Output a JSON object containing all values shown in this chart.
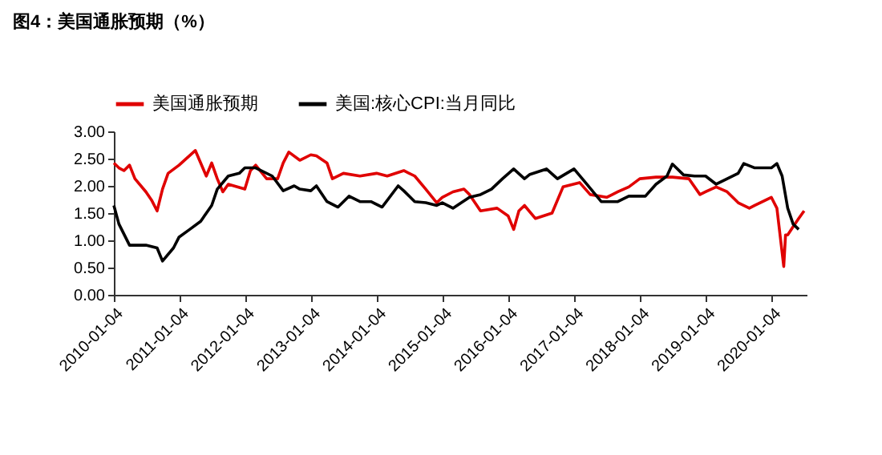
{
  "chart_data": {
    "type": "line",
    "title": "图4：美国通胀预期（%）",
    "legend": "top",
    "marker": "none",
    "line_style": "solid",
    "grid": false,
    "xlim": [
      "2010-01-04",
      "2020-07-15"
    ],
    "xticks": [
      "2010-01-04",
      "2011-01-04",
      "2012-01-04",
      "2013-01-04",
      "2014-01-04",
      "2015-01-04",
      "2016-01-04",
      "2017-01-04",
      "2018-01-04",
      "2019-01-04",
      "2020-01-04"
    ],
    "ylim": [
      0,
      3
    ],
    "yticks": [
      {
        "value": 0,
        "label": "0.00"
      },
      {
        "value": 0.5,
        "label": "0.50"
      },
      {
        "value": 1,
        "label": "1.00"
      },
      {
        "value": 1.5,
        "label": "1.50"
      },
      {
        "value": 2,
        "label": "2.00"
      },
      {
        "value": 2.5,
        "label": "2.50"
      },
      {
        "value": 3,
        "label": "3.00"
      }
    ],
    "series": [
      {
        "name": "美国通胀预期",
        "color": "#e00000",
        "x": [
          "2010-01-04",
          "2010-02",
          "2010-03",
          "2010-04",
          "2010-05",
          "2010-07",
          "2010-08",
          "2010-09",
          "2010-10",
          "2010-11",
          "2011-01",
          "2011-04",
          "2011-05",
          "2011-06",
          "2011-07",
          "2011-08",
          "2011-09",
          "2011-10",
          "2012-01",
          "2012-02",
          "2012-03",
          "2012-05",
          "2012-07",
          "2012-08",
          "2012-09",
          "2012-11",
          "2013-01",
          "2013-02",
          "2013-04",
          "2013-05",
          "2013-07",
          "2013-10",
          "2014-01",
          "2014-03",
          "2014-06",
          "2014-08",
          "2014-10",
          "2014-12",
          "2015-01",
          "2015-03",
          "2015-05",
          "2015-06",
          "2015-08",
          "2015-11",
          "2016-01",
          "2016-02",
          "2016-03",
          "2016-04",
          "2016-06",
          "2016-09",
          "2016-11",
          "2017-02",
          "2017-04",
          "2017-07",
          "2017-09",
          "2017-11",
          "2018-01",
          "2018-04",
          "2018-07",
          "2018-10",
          "2018-12",
          "2019-01",
          "2019-03",
          "2019-05",
          "2019-07",
          "2019-09",
          "2019-10",
          "2020-01",
          "2020-02",
          "2020-03-10",
          "2020-03-20",
          "2020-04",
          "2020-05",
          "2020-06",
          "2020-07"
        ],
        "values": [
          2.42,
          2.33,
          2.28,
          2.38,
          2.13,
          1.89,
          1.74,
          1.54,
          1.94,
          2.23,
          2.38,
          2.65,
          2.42,
          2.18,
          2.42,
          2.13,
          1.89,
          2.03,
          1.94,
          2.28,
          2.38,
          2.13,
          2.13,
          2.42,
          2.62,
          2.47,
          2.57,
          2.55,
          2.42,
          2.13,
          2.23,
          2.18,
          2.23,
          2.18,
          2.28,
          2.18,
          1.94,
          1.69,
          1.79,
          1.89,
          1.94,
          1.84,
          1.54,
          1.59,
          1.45,
          1.2,
          1.54,
          1.64,
          1.4,
          1.5,
          1.98,
          2.06,
          1.84,
          1.79,
          1.89,
          1.98,
          2.13,
          2.16,
          2.16,
          2.13,
          1.84,
          1.89,
          1.98,
          1.89,
          1.69,
          1.59,
          1.64,
          1.79,
          1.59,
          0.52,
          1.1,
          1.1,
          1.25,
          1.4,
          1.54
        ]
      },
      {
        "name": "美国:核心CPI:当月同比",
        "color": "#000000",
        "x": [
          "2010-01-04",
          "2010-02",
          "2010-04",
          "2010-07",
          "2010-09",
          "2010-10",
          "2010-12",
          "2011-01",
          "2011-03",
          "2011-05",
          "2011-07",
          "2011-08",
          "2011-10",
          "2011-12",
          "2012-01",
          "2012-03",
          "2012-06",
          "2012-08",
          "2012-10",
          "2012-11",
          "2013-01",
          "2013-02",
          "2013-04",
          "2013-06",
          "2013-08",
          "2013-10",
          "2013-12",
          "2014-02",
          "2014-05",
          "2014-06",
          "2014-08",
          "2014-10",
          "2014-12",
          "2015-01",
          "2015-03",
          "2015-06",
          "2015-08",
          "2015-10",
          "2015-12",
          "2016-02",
          "2016-04",
          "2016-05",
          "2016-08",
          "2016-10",
          "2017-01",
          "2017-03",
          "2017-06",
          "2017-09",
          "2017-11",
          "2018-02",
          "2018-04",
          "2018-06",
          "2018-07",
          "2018-09",
          "2018-11",
          "2019-01",
          "2019-03",
          "2019-05",
          "2019-07",
          "2019-08",
          "2019-10",
          "2020-01",
          "2020-02",
          "2020-03",
          "2020-04",
          "2020-05",
          "2020-06"
        ],
        "values": [
          1.64,
          1.3,
          0.91,
          0.91,
          0.86,
          0.62,
          0.86,
          1.06,
          1.2,
          1.35,
          1.64,
          1.94,
          2.18,
          2.23,
          2.33,
          2.33,
          2.18,
          1.91,
          2.0,
          1.94,
          1.91,
          2.0,
          1.71,
          1.61,
          1.81,
          1.71,
          1.71,
          1.61,
          2.0,
          1.91,
          1.71,
          1.69,
          1.64,
          1.69,
          1.59,
          1.79,
          1.84,
          1.94,
          2.13,
          2.31,
          2.13,
          2.21,
          2.31,
          2.13,
          2.31,
          2.08,
          1.71,
          1.71,
          1.81,
          1.81,
          2.03,
          2.18,
          2.4,
          2.2,
          2.18,
          2.18,
          2.03,
          2.13,
          2.23,
          2.41,
          2.33,
          2.33,
          2.41,
          2.18,
          1.59,
          1.3,
          1.2
        ]
      }
    ]
  }
}
